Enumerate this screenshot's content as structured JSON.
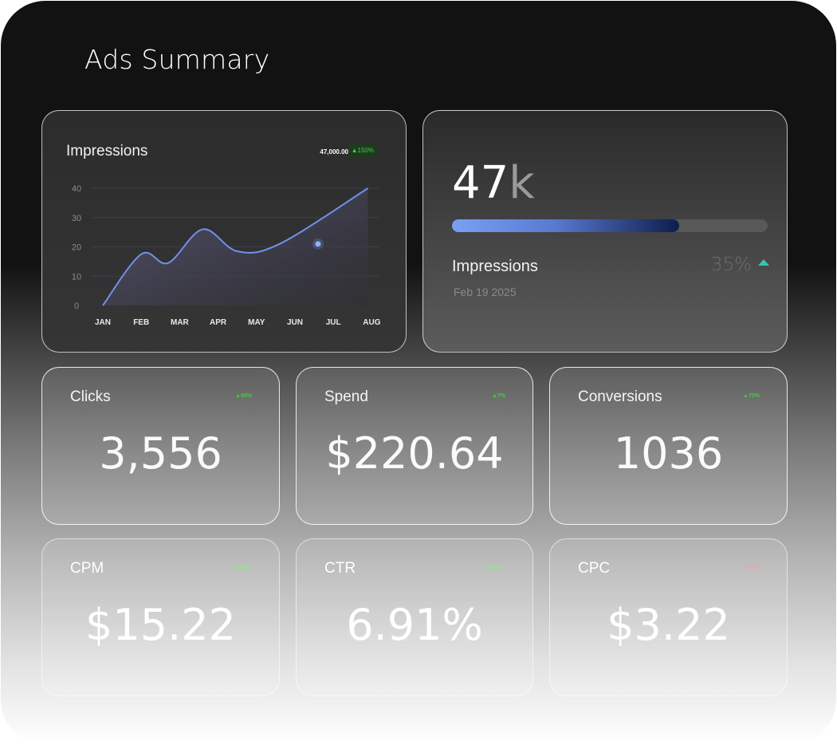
{
  "page": {
    "title": "Ads Summary"
  },
  "impressions_chart": {
    "title": "Impressions",
    "total": "47,000.00",
    "change": "▲150%",
    "chart_data": {
      "type": "area",
      "title": "Impressions",
      "categories": [
        "JAN",
        "FEB",
        "MAR",
        "APR",
        "MAY",
        "JUN",
        "JUL",
        "AUG"
      ],
      "series": [
        {
          "name": "Impressions",
          "values": [
            0,
            17.5,
            14.5,
            26,
            18.5,
            21,
            40
          ]
        }
      ],
      "x": [
        0,
        1,
        1.7,
        2.6,
        3.5,
        4.6,
        6.9
      ],
      "highlight": {
        "category": "JUL",
        "value": 21
      },
      "yticks": [
        "0",
        "10",
        "20",
        "30",
        "40"
      ],
      "ylim": [
        0,
        40
      ],
      "xlabel": "",
      "ylabel": "",
      "grid": true,
      "colors": {
        "line": "#6e93e8",
        "fill": "#5c5a78",
        "grid": "#3d3f52"
      }
    }
  },
  "progress_card": {
    "value": "47",
    "suffix": "k",
    "label": "Impressions",
    "date": "Feb 19 2025",
    "percent": "35%",
    "progress": 0.72,
    "arrow_color": "#2ec9b0"
  },
  "metrics": [
    {
      "label": "Clicks",
      "change": "▲60%",
      "value": "3,556",
      "change_color": "#3fd13f"
    },
    {
      "label": "Spend",
      "change": "▲7%",
      "value": "$220.64",
      "change_color": "#3fd13f"
    },
    {
      "label": "Conversions",
      "change": "▲70%",
      "value": "1036",
      "change_color": "#3fd13f"
    },
    {
      "label": "CPM",
      "change": "▲110%",
      "value": "$15.22",
      "change_color": "#8fe88f"
    },
    {
      "label": "CTR",
      "change": "▲28.0%",
      "value": "6.91%",
      "change_color": "#8fe88f"
    },
    {
      "label": "CPC",
      "change": "▼10%",
      "value": "$3.22",
      "change_color": "#f0a0a0"
    }
  ]
}
